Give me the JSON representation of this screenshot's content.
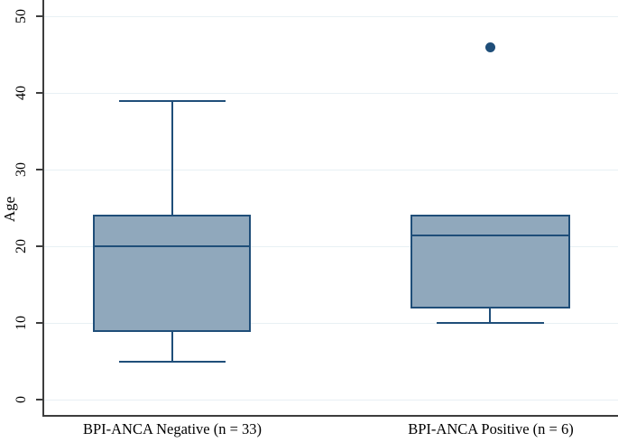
{
  "chart_data": {
    "type": "box",
    "title": "",
    "ylabel": "Age",
    "ylim": [
      0,
      50
    ],
    "yticks": [
      0,
      10,
      20,
      30,
      40,
      50
    ],
    "grid": "horizontal",
    "categories": [
      "BPI-ANCA Negative (n = 33)",
      "BPI-ANCA Positive (n = 6)"
    ],
    "series": [
      {
        "label": "BPI-ANCA Negative (n = 33)",
        "whisker_low": 5,
        "q1": 9,
        "median": 20,
        "q3": 24,
        "whisker_high": 39,
        "outliers": []
      },
      {
        "label": "BPI-ANCA Positive (n = 6)",
        "whisker_low": 10,
        "q1": 12,
        "median": 21.5,
        "q3": 24,
        "whisker_high": null,
        "outliers": [
          46
        ]
      }
    ],
    "colors": {
      "box_fill": "#90a8bc",
      "box_border": "#1f4e79",
      "whisker": "#1f4e79",
      "outlier": "#1f4e79",
      "gridline": "#e8f0f4",
      "axis": "#3d3d3d",
      "text": "#000000"
    }
  }
}
